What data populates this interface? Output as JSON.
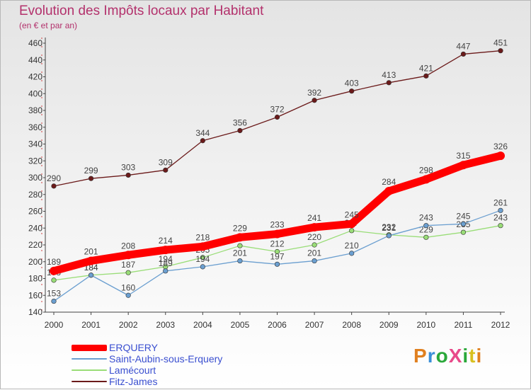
{
  "title": "Evolution des Impôts locaux par Habitant",
  "subtitle": "(en € et par an)",
  "brand": {
    "text": "ProXiti",
    "colors": [
      "#e08020",
      "#3a8fd8",
      "#2aa83a",
      "#e84a8a",
      "#2aa83a",
      "#d8c020",
      "#e08020"
    ]
  },
  "chart_data": {
    "type": "line",
    "x": [
      2000,
      2001,
      2002,
      2003,
      2004,
      2005,
      2006,
      2007,
      2008,
      2009,
      2010,
      2011,
      2012
    ],
    "ylim": [
      140,
      460
    ],
    "yticks": [
      140,
      160,
      180,
      200,
      220,
      240,
      260,
      280,
      300,
      320,
      340,
      360,
      380,
      400,
      420,
      440,
      460
    ],
    "grid": false,
    "legend_position": "bottom-left",
    "series": [
      {
        "name": "Fitz-James",
        "color": "#6b1a1a",
        "values": [
          290,
          299,
          303,
          309,
          344,
          356,
          372,
          392,
          403,
          413,
          421,
          447,
          451
        ]
      },
      {
        "name": "Laméc​ourt",
        "color": "#99dd77",
        "values": [
          178,
          184,
          187,
          194,
          205,
          219,
          212,
          220,
          237,
          232,
          229,
          235,
          243
        ]
      },
      {
        "name": "Saint-Aubin-sous-Erquery",
        "color": "#6b9fd0",
        "values": [
          153,
          184,
          160,
          189,
          194,
          201,
          197,
          201,
          210,
          231,
          243,
          245,
          261
        ]
      },
      {
        "name": "ERQUERY",
        "color": "#ff0000",
        "values": [
          189,
          201,
          208,
          214,
          218,
          229,
          233,
          241,
          245,
          284,
          298,
          315,
          326
        ]
      }
    ],
    "point_labels": {
      "Fitz-James": [
        "290",
        "299",
        "303",
        "309",
        "344",
        "356",
        "372",
        "392",
        "403",
        "413",
        "421",
        "447",
        "451"
      ],
      "Laméc​ourt": [
        "178",
        "184",
        "187",
        "194",
        "205",
        "219",
        "212",
        "220",
        "237",
        "232",
        "229",
        "235",
        "243"
      ],
      "Saint-Aubin-sous-Erquery": [
        "153",
        "184",
        "160",
        "189",
        "194",
        "201",
        "197",
        "201",
        "210",
        "231",
        "243",
        "245",
        "261"
      ],
      "ERQUERY": [
        "189",
        "201",
        "208",
        "214",
        "218",
        "229",
        "233",
        "241",
        "245",
        "284",
        "298",
        "315",
        "326"
      ]
    }
  },
  "legend": [
    {
      "label": "ERQUERY",
      "color": "#ff0000"
    },
    {
      "label": "Saint-Aubin-sous-Erquery",
      "color": "#6b9fd0"
    },
    {
      "label": "Lamécourt",
      "color": "#99dd77"
    },
    {
      "label": "Fitz-James",
      "color": "#6b1a1a"
    }
  ]
}
